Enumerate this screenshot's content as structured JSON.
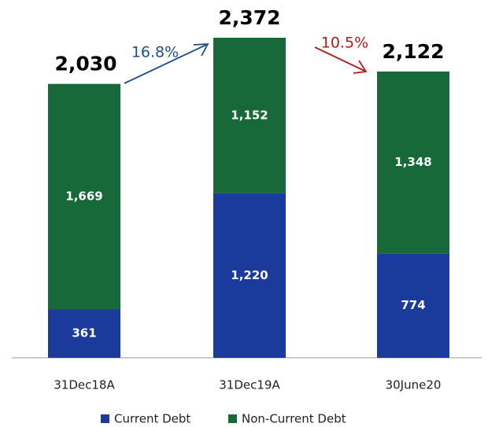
{
  "chart_data": {
    "type": "stacked_bar",
    "categories": [
      "31Dec18A",
      "31Dec19A",
      "30June20"
    ],
    "series": [
      {
        "name": "Current Debt",
        "color": "#1a3a9c",
        "values": [
          361,
          1220,
          774
        ],
        "value_labels": [
          "361",
          "1,220",
          "774"
        ]
      },
      {
        "name": "Non-Current Debt",
        "color": "#17693a",
        "values": [
          1669,
          1152,
          1348
        ],
        "value_labels": [
          "1,669",
          "1,152",
          "1,348"
        ]
      }
    ],
    "totals": [
      2030,
      2372,
      2122
    ],
    "total_labels": [
      "2,030",
      "2,372",
      "2,122"
    ],
    "annotations": [
      {
        "text": "16.8%",
        "color": "#1f4e8c"
      },
      {
        "text": "10.5%",
        "color": "#b01c1c"
      }
    ],
    "legend": "bottom"
  }
}
